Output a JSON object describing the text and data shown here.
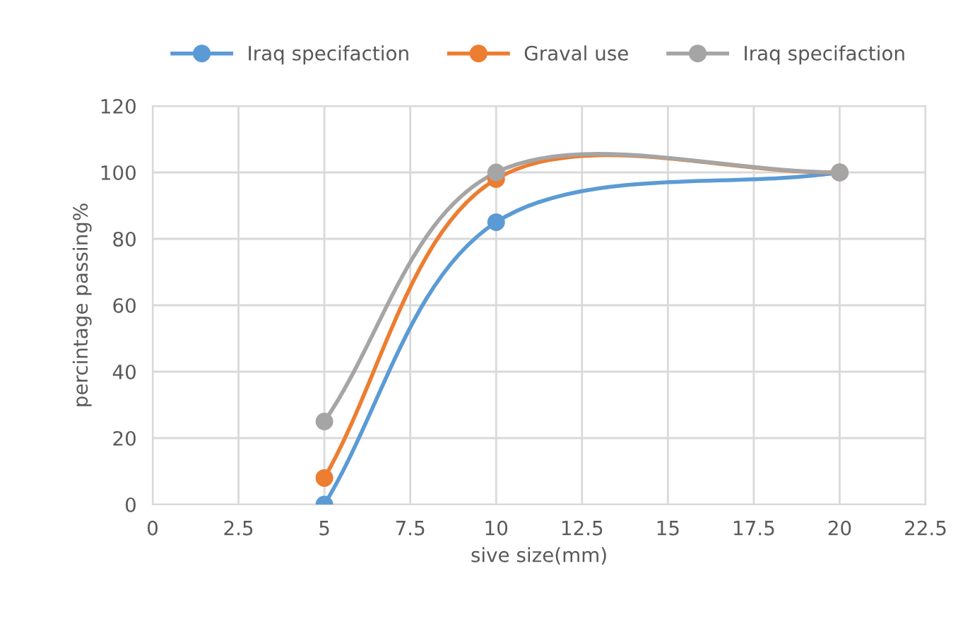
{
  "chart_data": {
    "type": "line",
    "xlabel": "sive size(mm)",
    "ylabel": "percintage passing%",
    "xlim": [
      0,
      22.5
    ],
    "xticks": [
      0,
      2.5,
      5,
      7.5,
      10,
      12.5,
      15,
      17.5,
      20,
      22.5
    ],
    "ylim": [
      0,
      120
    ],
    "yticks": [
      0,
      20,
      40,
      60,
      80,
      100,
      120
    ],
    "grid": true,
    "legend": "top",
    "marker": "circle",
    "line_style": "solid",
    "series": [
      {
        "name": "Iraq specifaction",
        "color": "#5b9bd5",
        "x": [
          5,
          10,
          20
        ],
        "values": [
          0,
          85,
          100
        ]
      },
      {
        "name": "Graval use",
        "color": "#ed7d31",
        "x": [
          5,
          10,
          20
        ],
        "values": [
          8,
          98,
          100
        ]
      },
      {
        "name": "Iraq specifaction",
        "color": "#a5a5a5",
        "x": [
          5,
          10,
          20
        ],
        "values": [
          25,
          100,
          100
        ]
      }
    ]
  }
}
